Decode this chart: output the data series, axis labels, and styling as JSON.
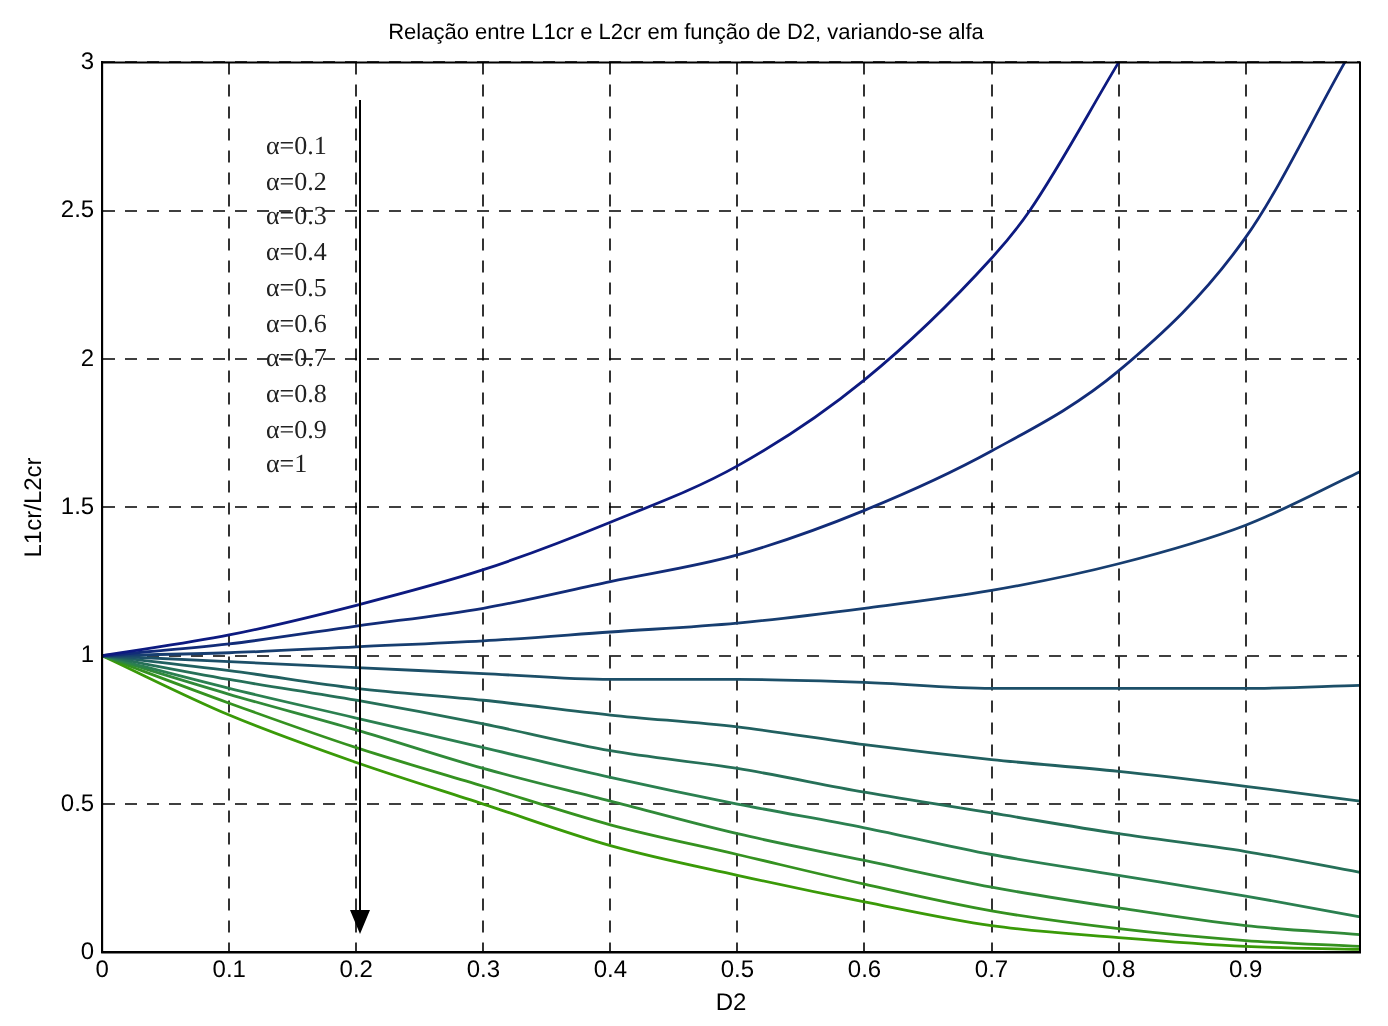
{
  "chart_data": {
    "type": "line",
    "title": "Relação entre L1cr e L2cr em função de D2, variando-se alfa",
    "xlabel": "D2",
    "ylabel": "L1cr/L2cr",
    "xlim": [
      0,
      0.99
    ],
    "xticks": [
      0,
      0.1,
      0.2,
      0.3,
      0.4,
      0.5,
      0.6,
      0.7,
      0.8,
      0.9
    ],
    "ylim": [
      0,
      3
    ],
    "yticks": [
      0,
      0.5,
      1,
      1.5,
      2,
      2.5,
      3
    ],
    "grid": true,
    "legend": false,
    "marker": "none",
    "line_style": "solid",
    "annotations": [
      "α=0.1",
      "α=0.2",
      "α=0.3",
      "α=0.4",
      "α=0.5",
      "α=0.6",
      "α=0.7",
      "α=0.8",
      "α=0.9",
      "α=1"
    ],
    "series": [
      {
        "color": "#0d1a80",
        "x": [
          0,
          0.1,
          0.2,
          0.3,
          0.4,
          0.5,
          0.6,
          0.7,
          0.73,
          0.8
        ],
        "values": [
          1,
          1.07,
          1.17,
          1.29,
          1.45,
          1.64,
          1.93,
          2.34,
          2.5,
          3.0
        ]
      },
      {
        "color": "#122c78",
        "x": [
          0,
          0.1,
          0.2,
          0.3,
          0.4,
          0.5,
          0.6,
          0.7,
          0.8,
          0.9,
          0.978
        ],
        "values": [
          1,
          1.04,
          1.1,
          1.16,
          1.25,
          1.34,
          1.49,
          1.69,
          1.96,
          2.41,
          3.0
        ]
      },
      {
        "color": "#173e70",
        "x": [
          0,
          0.1,
          0.2,
          0.3,
          0.4,
          0.5,
          0.6,
          0.7,
          0.8,
          0.9,
          0.99
        ],
        "values": [
          1,
          1.01,
          1.03,
          1.05,
          1.08,
          1.11,
          1.16,
          1.22,
          1.31,
          1.44,
          1.62
        ]
      },
      {
        "color": "#1c4f68",
        "x": [
          0,
          0.1,
          0.2,
          0.3,
          0.4,
          0.5,
          0.6,
          0.7,
          0.8,
          0.9,
          0.99
        ],
        "values": [
          1,
          0.98,
          0.96,
          0.94,
          0.92,
          0.92,
          0.91,
          0.89,
          0.89,
          0.89,
          0.9
        ]
      },
      {
        "color": "#216060",
        "x": [
          0,
          0.1,
          0.2,
          0.3,
          0.4,
          0.5,
          0.6,
          0.7,
          0.8,
          0.9,
          0.99
        ],
        "values": [
          1,
          0.95,
          0.89,
          0.85,
          0.8,
          0.76,
          0.7,
          0.65,
          0.61,
          0.56,
          0.51
        ]
      },
      {
        "color": "#267058",
        "x": [
          0,
          0.1,
          0.2,
          0.3,
          0.4,
          0.5,
          0.6,
          0.7,
          0.8,
          0.9,
          0.99
        ],
        "values": [
          1,
          0.92,
          0.85,
          0.77,
          0.68,
          0.62,
          0.54,
          0.47,
          0.4,
          0.34,
          0.27
        ]
      },
      {
        "color": "#2b8050",
        "x": [
          0,
          0.1,
          0.2,
          0.3,
          0.4,
          0.5,
          0.6,
          0.7,
          0.8,
          0.9,
          0.99
        ],
        "values": [
          1,
          0.89,
          0.79,
          0.69,
          0.59,
          0.5,
          0.42,
          0.33,
          0.26,
          0.19,
          0.12
        ]
      },
      {
        "color": "#308a38",
        "x": [
          0,
          0.1,
          0.2,
          0.3,
          0.4,
          0.5,
          0.6,
          0.7,
          0.8,
          0.9,
          0.99
        ],
        "values": [
          1,
          0.87,
          0.75,
          0.62,
          0.51,
          0.4,
          0.31,
          0.22,
          0.15,
          0.09,
          0.06
        ]
      },
      {
        "color": "#359220",
        "x": [
          0,
          0.1,
          0.2,
          0.3,
          0.4,
          0.5,
          0.6,
          0.7,
          0.8,
          0.9,
          0.99
        ],
        "values": [
          1,
          0.84,
          0.69,
          0.56,
          0.43,
          0.33,
          0.23,
          0.14,
          0.08,
          0.04,
          0.02
        ]
      },
      {
        "color": "#3a9a08",
        "x": [
          0,
          0.1,
          0.2,
          0.3,
          0.4,
          0.5,
          0.6,
          0.7,
          0.8,
          0.9,
          0.99
        ],
        "values": [
          1,
          0.8,
          0.64,
          0.5,
          0.36,
          0.26,
          0.17,
          0.09,
          0.05,
          0.02,
          0.01
        ]
      }
    ]
  }
}
